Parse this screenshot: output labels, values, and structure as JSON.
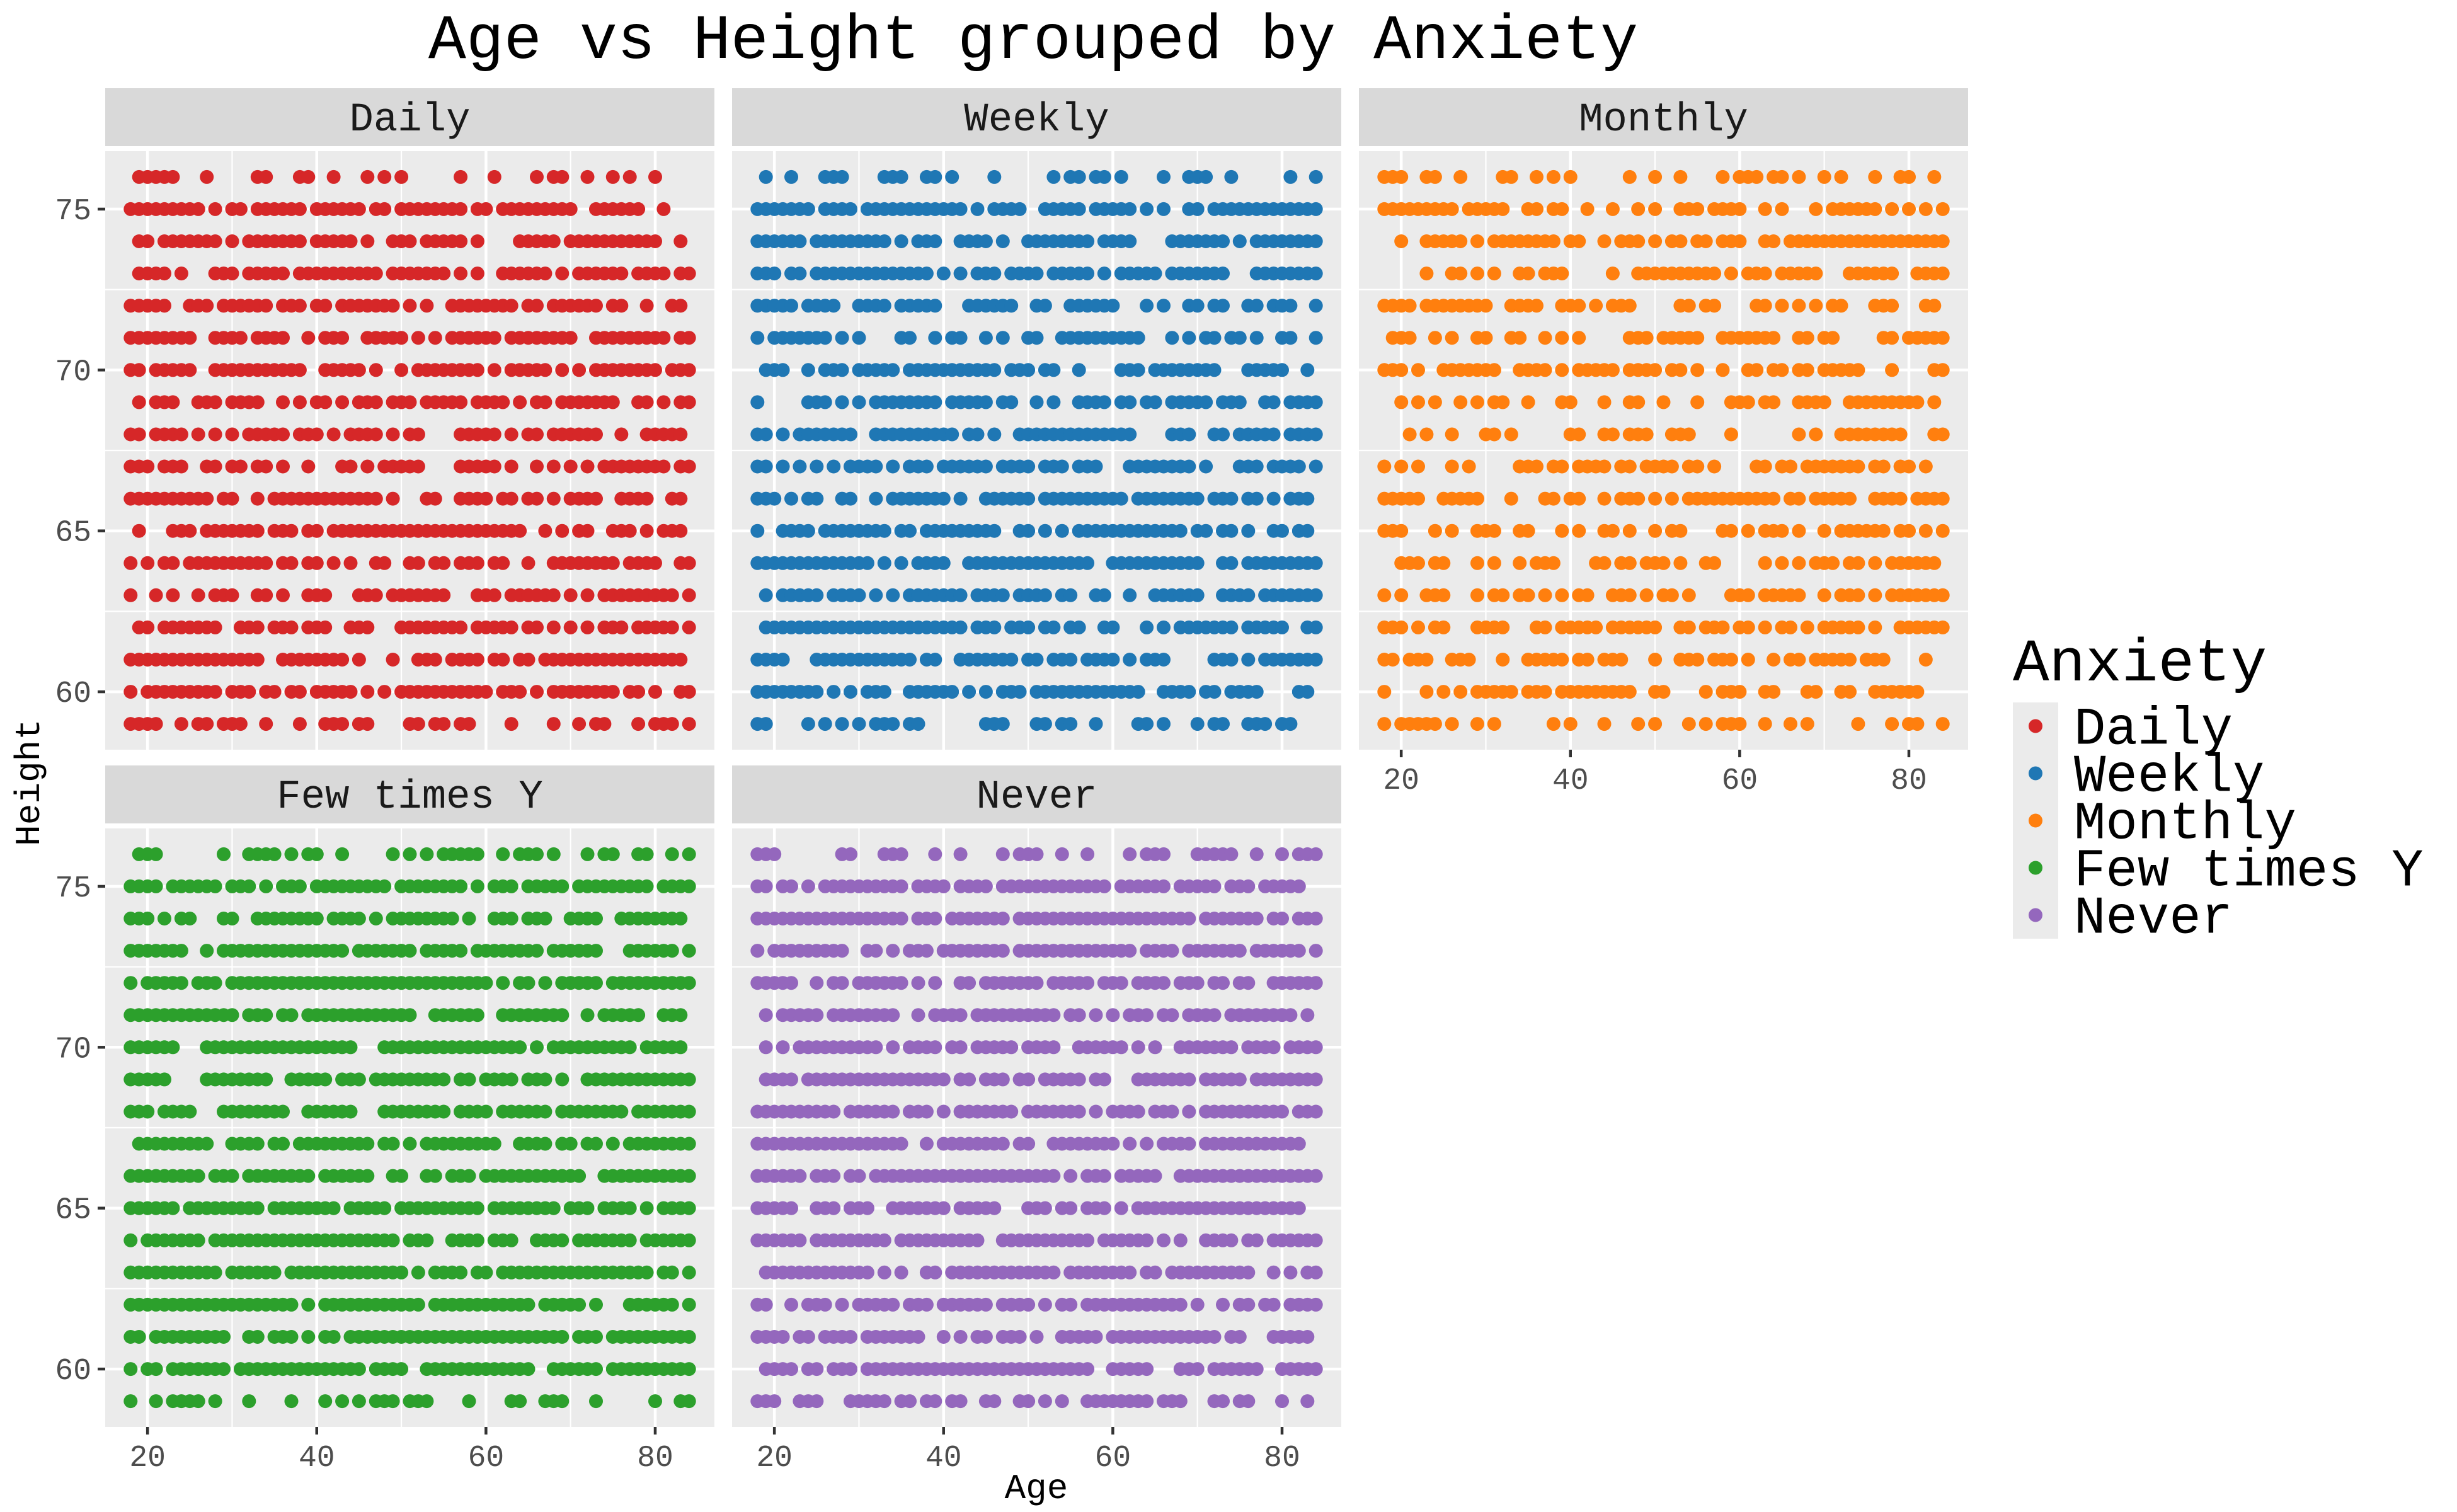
{
  "chart_data": {
    "type": "scatter",
    "title": "Age vs Height grouped by Anxiety",
    "xlabel": "Age",
    "ylabel": "Height",
    "xlim": [
      15,
      87
    ],
    "ylim": [
      58.2,
      76.8
    ],
    "x_ticks": [
      20,
      40,
      60,
      80
    ],
    "y_ticks": [
      60,
      65,
      70,
      75
    ],
    "grid": true,
    "legend": {
      "title": "Anxiety",
      "position": "right",
      "entries": [
        "Daily",
        "Weekly",
        "Monthly",
        "Few times Y",
        "Never"
      ]
    },
    "age_range": [
      18,
      84
    ],
    "height_levels": [
      59,
      60,
      61,
      62,
      63,
      64,
      65,
      66,
      67,
      68,
      69,
      70,
      71,
      72,
      73,
      74,
      75,
      76
    ],
    "series": [
      {
        "name": "Daily",
        "color": "#d62728",
        "density": 0.72,
        "seed": 11
      },
      {
        "name": "Weekly",
        "color": "#1f77b4",
        "density": 0.74,
        "seed": 23
      },
      {
        "name": "Monthly",
        "color": "#ff7f0e",
        "density": 0.62,
        "seed": 37
      },
      {
        "name": "Few times Y",
        "color": "#2ca02c",
        "density": 0.86,
        "seed": 41
      },
      {
        "name": "Never",
        "color": "#9467bd",
        "density": 0.8,
        "seed": 53
      }
    ]
  }
}
